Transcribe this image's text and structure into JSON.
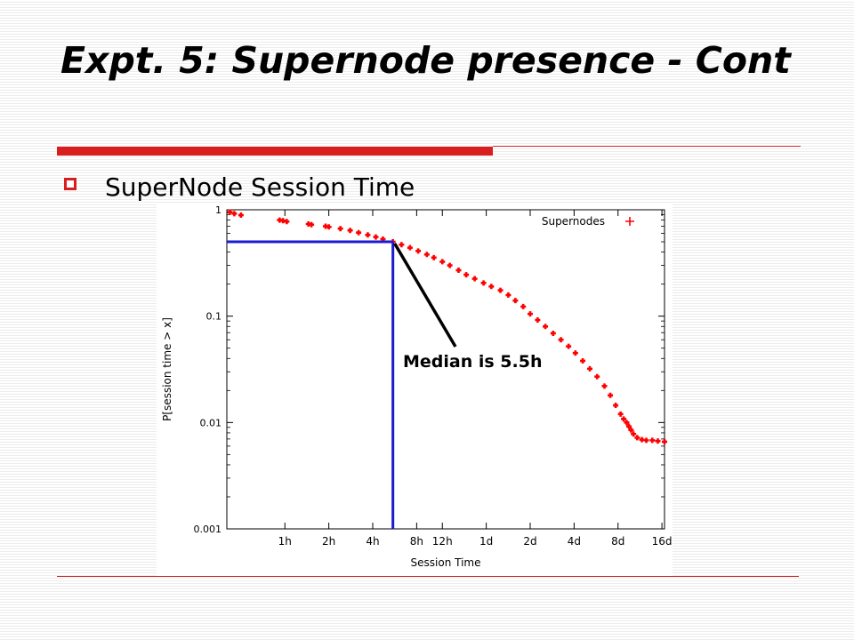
{
  "slide": {
    "title": "Expt. 5: Supernode presence - Cont",
    "bullet": "SuperNode Session Time",
    "annotation": "Median is 5.5h"
  },
  "colors": {
    "accent_red": "#d81e1e",
    "series": "#ff0000",
    "median_line": "#1a1ad0",
    "arrow": "#000000"
  },
  "chart_data": {
    "type": "scatter",
    "scale": {
      "x": "log",
      "y": "log"
    },
    "xlabel": "Session Time",
    "ylabel": "P[session time > x]",
    "x_unit": "hours",
    "xlim": [
      0.4,
      400
    ],
    "ylim": [
      0.001,
      1
    ],
    "x_ticks": [
      {
        "value": 1,
        "label": "1h"
      },
      {
        "value": 2,
        "label": "2h"
      },
      {
        "value": 4,
        "label": "4h"
      },
      {
        "value": 8,
        "label": "8h"
      },
      {
        "value": 12,
        "label": "12h"
      },
      {
        "value": 24,
        "label": "1d"
      },
      {
        "value": 48,
        "label": "2d"
      },
      {
        "value": 96,
        "label": "4d"
      },
      {
        "value": 192,
        "label": "8d"
      },
      {
        "value": 384,
        "label": "16d"
      }
    ],
    "y_ticks": [
      {
        "value": 1,
        "label": "1"
      },
      {
        "value": 0.1,
        "label": "0.1"
      },
      {
        "value": 0.01,
        "label": "0.01"
      },
      {
        "value": 0.001,
        "label": "0.001"
      }
    ],
    "legend": {
      "position": "top-right",
      "entries": [
        "Supernodes"
      ]
    },
    "median": {
      "x": 5.5,
      "y": 0.5
    },
    "series": [
      {
        "name": "Supernodes",
        "marker": "+",
        "points": [
          [
            0.42,
            0.95
          ],
          [
            0.45,
            0.92
          ],
          [
            0.5,
            0.89
          ],
          [
            0.92,
            0.8
          ],
          [
            0.97,
            0.79
          ],
          [
            1.03,
            0.775
          ],
          [
            1.45,
            0.735
          ],
          [
            1.52,
            0.725
          ],
          [
            1.9,
            0.7
          ],
          [
            2.0,
            0.69
          ],
          [
            2.4,
            0.665
          ],
          [
            2.8,
            0.64
          ],
          [
            3.2,
            0.61
          ],
          [
            3.7,
            0.58
          ],
          [
            4.2,
            0.555
          ],
          [
            4.7,
            0.53
          ],
          [
            5.5,
            0.5
          ],
          [
            6.3,
            0.47
          ],
          [
            7.2,
            0.44
          ],
          [
            8.2,
            0.41
          ],
          [
            9.4,
            0.38
          ],
          [
            10.5,
            0.355
          ],
          [
            12.0,
            0.325
          ],
          [
            13.5,
            0.3
          ],
          [
            15.5,
            0.27
          ],
          [
            17.5,
            0.245
          ],
          [
            20.0,
            0.225
          ],
          [
            23.0,
            0.205
          ],
          [
            26.0,
            0.19
          ],
          [
            30.0,
            0.175
          ],
          [
            34.0,
            0.158
          ],
          [
            38.0,
            0.14
          ],
          [
            43.0,
            0.123
          ],
          [
            48.0,
            0.105
          ],
          [
            54.0,
            0.092
          ],
          [
            61.0,
            0.08
          ],
          [
            69.0,
            0.069
          ],
          [
            78.0,
            0.06
          ],
          [
            88.0,
            0.052
          ],
          [
            98.0,
            0.045
          ],
          [
            110.0,
            0.038
          ],
          [
            123.0,
            0.032
          ],
          [
            138.0,
            0.027
          ],
          [
            155.0,
            0.022
          ],
          [
            170.0,
            0.018
          ],
          [
            185.0,
            0.0145
          ],
          [
            200.0,
            0.012
          ],
          [
            210.0,
            0.0108
          ],
          [
            220.0,
            0.01
          ],
          [
            228.0,
            0.0092
          ],
          [
            236.0,
            0.0085
          ],
          [
            245.0,
            0.0078
          ],
          [
            260.0,
            0.0072
          ],
          [
            280.0,
            0.0069
          ],
          [
            300.0,
            0.0068
          ],
          [
            330.0,
            0.0068
          ],
          [
            360.0,
            0.0067
          ],
          [
            400.0,
            0.0066
          ]
        ]
      }
    ]
  }
}
